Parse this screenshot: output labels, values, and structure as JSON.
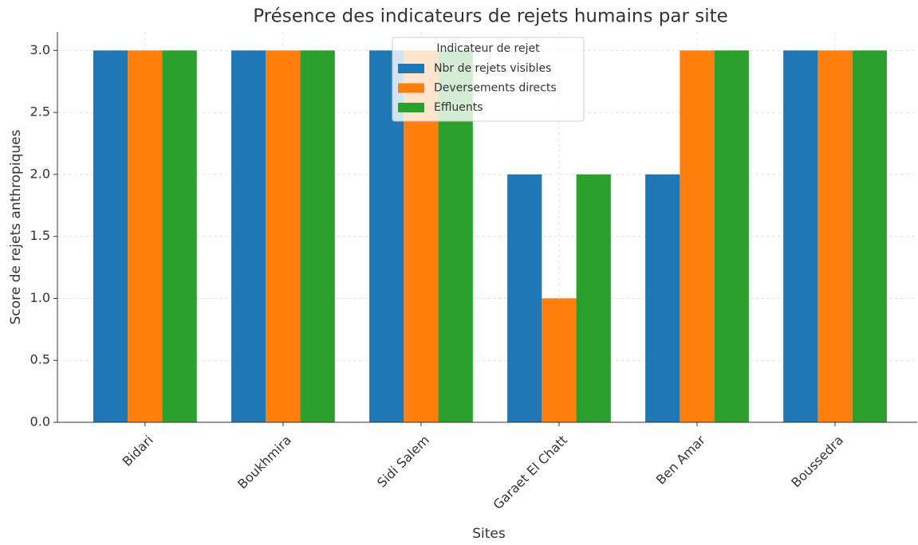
{
  "chart_data": {
    "type": "bar",
    "title": "Présence des indicateurs de rejets humains par site",
    "xlabel": "Sites",
    "ylabel": "Score de rejets anthropiques",
    "categories": [
      "Bidari",
      "Boukhmira",
      "Sidi Salem",
      "Garaet El Chatt",
      "Ben Amar",
      "Boussedra"
    ],
    "series": [
      {
        "name": "Nbr de rejets visibles",
        "color": "#1f77b4",
        "values": [
          3,
          3,
          3,
          2,
          2,
          3
        ]
      },
      {
        "name": "Deversements directs",
        "color": "#ff7f0e",
        "values": [
          3,
          3,
          3,
          1,
          3,
          3
        ]
      },
      {
        "name": "Effluents",
        "color": "#2ca02c",
        "values": [
          3,
          3,
          3,
          2,
          3,
          3
        ]
      }
    ],
    "legend_title": "Indicateur de rejet",
    "legend": "upper center",
    "ylim": [
      0,
      3.15
    ],
    "yticks": [
      {
        "value": 0,
        "label": "0.0"
      },
      {
        "value": 0.5,
        "label": "0.5"
      },
      {
        "value": 1,
        "label": "1.0"
      },
      {
        "value": 1.5,
        "label": "1.5"
      },
      {
        "value": 2,
        "label": "2.0"
      },
      {
        "value": 2.5,
        "label": "2.5"
      },
      {
        "value": 3,
        "label": "3.0"
      }
    ],
    "grid": true
  }
}
